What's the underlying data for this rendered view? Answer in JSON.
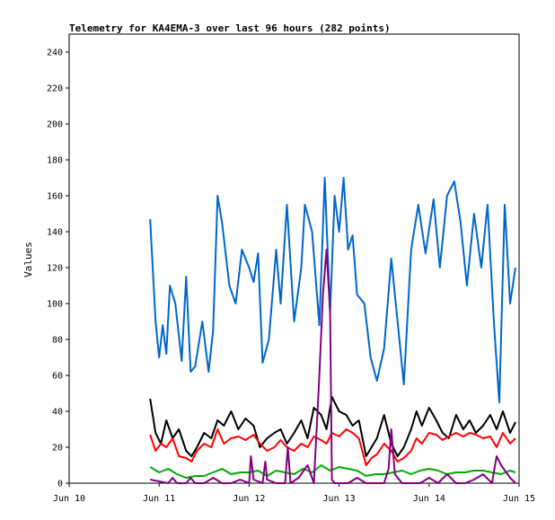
{
  "chart_data": {
    "type": "line",
    "title": "Telemetry for KA4EMA-3 over last 96 hours (282 points)",
    "xlabel": "",
    "ylabel": "Values",
    "xlim": [
      "Jun 10",
      "Jun 15"
    ],
    "ylim": [
      0,
      250
    ],
    "x_ticks": [
      "Jun 10",
      "Jun 11",
      "Jun 12",
      "Jun 13",
      "Jun 14",
      "Jun 15"
    ],
    "y_ticks": [
      0,
      20,
      40,
      60,
      80,
      100,
      120,
      140,
      160,
      180,
      200,
      220,
      240
    ],
    "grid": false,
    "legend": "none",
    "series": [
      {
        "color": "#0066cc",
        "x": [
          10.9,
          10.96,
          11.0,
          11.04,
          11.08,
          11.12,
          11.18,
          11.25,
          11.3,
          11.35,
          11.4,
          11.48,
          11.55,
          11.6,
          11.65,
          11.7,
          11.78,
          11.85,
          11.92,
          12.0,
          12.05,
          12.1,
          12.15,
          12.22,
          12.3,
          12.35,
          12.42,
          12.5,
          12.58,
          12.62,
          12.7,
          12.78,
          12.84,
          12.9,
          12.95,
          13.0,
          13.05,
          13.1,
          13.15,
          13.2,
          13.28,
          13.35,
          13.42,
          13.5,
          13.58,
          13.65,
          13.72,
          13.8,
          13.88,
          13.96,
          14.05,
          14.12,
          14.2,
          14.28,
          14.35,
          14.42,
          14.5,
          14.58,
          14.65,
          14.72,
          14.78,
          14.84,
          14.9,
          14.96
        ],
        "y": [
          147,
          90,
          70,
          88,
          72,
          110,
          100,
          68,
          115,
          62,
          65,
          90,
          62,
          85,
          160,
          145,
          110,
          100,
          130,
          120,
          112,
          128,
          67,
          80,
          130,
          100,
          155,
          90,
          120,
          155,
          140,
          88,
          170,
          95,
          160,
          140,
          170,
          130,
          138,
          105,
          100,
          70,
          57,
          75,
          125,
          90,
          55,
          130,
          155,
          128,
          158,
          120,
          160,
          168,
          145,
          110,
          150,
          120,
          155,
          90,
          45,
          155,
          100,
          120
        ]
      },
      {
        "color": "#000000",
        "x": [
          10.9,
          10.96,
          11.02,
          11.08,
          11.15,
          11.22,
          11.3,
          11.36,
          11.42,
          11.5,
          11.58,
          11.65,
          11.72,
          11.8,
          11.88,
          11.96,
          12.05,
          12.12,
          12.2,
          12.28,
          12.35,
          12.42,
          12.5,
          12.58,
          12.65,
          12.72,
          12.8,
          12.86,
          12.92,
          13.0,
          13.08,
          13.15,
          13.22,
          13.3,
          13.36,
          13.42,
          13.5,
          13.58,
          13.65,
          13.72,
          13.8,
          13.86,
          13.92,
          14.0,
          14.08,
          14.15,
          14.22,
          14.3,
          14.38,
          14.45,
          14.52,
          14.6,
          14.68,
          14.75,
          14.82,
          14.9,
          14.96
        ],
        "y": [
          47,
          28,
          22,
          35,
          25,
          30,
          18,
          15,
          20,
          28,
          25,
          35,
          32,
          40,
          30,
          36,
          32,
          20,
          25,
          28,
          30,
          22,
          28,
          35,
          25,
          42,
          38,
          30,
          48,
          40,
          38,
          32,
          35,
          15,
          20,
          25,
          38,
          22,
          15,
          20,
          30,
          40,
          32,
          42,
          35,
          28,
          25,
          38,
          30,
          35,
          28,
          32,
          38,
          30,
          40,
          28,
          34
        ]
      },
      {
        "color": "#ff0000",
        "x": [
          10.9,
          10.96,
          11.02,
          11.08,
          11.15,
          11.22,
          11.3,
          11.36,
          11.42,
          11.5,
          11.58,
          11.65,
          11.72,
          11.8,
          11.88,
          11.96,
          12.05,
          12.12,
          12.2,
          12.28,
          12.35,
          12.42,
          12.5,
          12.58,
          12.65,
          12.72,
          12.8,
          12.86,
          12.92,
          13.0,
          13.08,
          13.15,
          13.22,
          13.3,
          13.36,
          13.42,
          13.5,
          13.58,
          13.65,
          13.72,
          13.8,
          13.86,
          13.92,
          14.0,
          14.08,
          14.15,
          14.22,
          14.3,
          14.38,
          14.45,
          14.52,
          14.6,
          14.68,
          14.75,
          14.82,
          14.9,
          14.96
        ],
        "y": [
          27,
          18,
          22,
          20,
          25,
          15,
          14,
          12,
          18,
          22,
          20,
          30,
          22,
          25,
          26,
          24,
          27,
          22,
          18,
          20,
          24,
          20,
          18,
          22,
          20,
          26,
          24,
          22,
          28,
          26,
          30,
          28,
          25,
          10,
          14,
          16,
          22,
          18,
          12,
          14,
          18,
          25,
          22,
          28,
          27,
          24,
          26,
          28,
          26,
          28,
          27,
          25,
          26,
          20,
          28,
          22,
          25
        ]
      },
      {
        "color": "#00aa00",
        "x": [
          10.9,
          11.0,
          11.1,
          11.2,
          11.3,
          11.4,
          11.5,
          11.6,
          11.7,
          11.8,
          11.9,
          12.0,
          12.1,
          12.2,
          12.3,
          12.4,
          12.5,
          12.6,
          12.7,
          12.8,
          12.9,
          13.0,
          13.1,
          13.2,
          13.3,
          13.4,
          13.5,
          13.6,
          13.7,
          13.8,
          13.9,
          14.0,
          14.1,
          14.2,
          14.3,
          14.4,
          14.5,
          14.6,
          14.7,
          14.8,
          14.9,
          14.96
        ],
        "y": [
          9,
          6,
          8,
          5,
          3,
          4,
          4,
          6,
          8,
          5,
          6,
          6,
          7,
          4,
          7,
          6,
          5,
          8,
          6,
          10,
          7,
          9,
          8,
          7,
          4,
          5,
          5,
          6,
          7,
          5,
          7,
          8,
          7,
          5,
          6,
          6,
          7,
          7,
          6,
          5,
          7,
          6
        ]
      },
      {
        "color": "#800080",
        "x": [
          10.9,
          11.0,
          11.1,
          11.15,
          11.2,
          11.3,
          11.35,
          11.4,
          11.5,
          11.6,
          11.7,
          11.8,
          11.9,
          12.0,
          12.02,
          12.05,
          12.15,
          12.18,
          12.2,
          12.3,
          12.4,
          12.43,
          12.46,
          12.55,
          12.65,
          12.72,
          12.75,
          12.78,
          12.82,
          12.86,
          12.9,
          12.92,
          12.95,
          13.0,
          13.1,
          13.2,
          13.3,
          13.4,
          13.5,
          13.55,
          13.58,
          13.62,
          13.7,
          13.8,
          13.9,
          14.0,
          14.1,
          14.2,
          14.3,
          14.4,
          14.5,
          14.6,
          14.7,
          14.75,
          14.8,
          14.9,
          14.96
        ],
        "y": [
          2,
          1,
          0,
          3,
          0,
          0,
          3,
          0,
          0,
          3,
          0,
          0,
          2,
          0,
          15,
          2,
          0,
          12,
          2,
          0,
          0,
          20,
          0,
          3,
          10,
          0,
          30,
          60,
          105,
          130,
          95,
          2,
          0,
          0,
          0,
          3,
          0,
          0,
          0,
          8,
          30,
          5,
          0,
          0,
          0,
          3,
          0,
          5,
          0,
          0,
          2,
          5,
          0,
          15,
          10,
          3,
          0
        ]
      }
    ]
  }
}
